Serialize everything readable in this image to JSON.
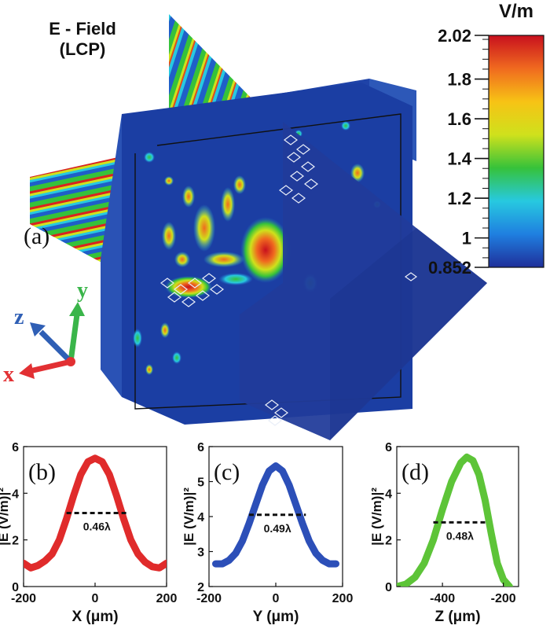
{
  "panel_a": {
    "title_line1": "E - Field",
    "title_line2": "(LCP)",
    "label": "(a)",
    "colorbar": {
      "unit": "V/m",
      "min": 0.852,
      "max": 2.02,
      "ticks": [
        "2.02",
        "1.8",
        "1.6",
        "1.4",
        "1.2",
        "1",
        "0.852"
      ],
      "tick_values": [
        2.02,
        1.8,
        1.6,
        1.4,
        1.2,
        1.0,
        0.852
      ],
      "colormap": [
        "#1f2f9a",
        "#1f7fe0",
        "#27c9e0",
        "#36c23a",
        "#cfe11c",
        "#f7c315",
        "#f06a1f",
        "#c8101e"
      ]
    },
    "axes": {
      "x": {
        "label": "x",
        "color": "#e23033"
      },
      "y": {
        "label": "y",
        "color": "#3ab54a"
      },
      "z": {
        "label": "z",
        "color": "#2f5fb5"
      }
    }
  },
  "chart_data": [
    {
      "type": "line",
      "panel": "(b)",
      "xlabel": "X (μm)",
      "ylabel": "|E (V/m)|²",
      "xlim": [
        -200,
        200
      ],
      "ylim": [
        0,
        6
      ],
      "xticks": [
        "-200",
        "0",
        "200"
      ],
      "yticks": [
        "0",
        "2",
        "4",
        "6"
      ],
      "color": "#e02b2b",
      "fwhm_label": "0.46λ",
      "fwhm_level": 3.15,
      "fwhm_x": [
        -80,
        90
      ],
      "x": [
        -200,
        -180,
        -160,
        -140,
        -120,
        -100,
        -80,
        -60,
        -40,
        -20,
        0,
        20,
        40,
        60,
        80,
        100,
        120,
        140,
        160,
        180,
        200
      ],
      "y": [
        1.0,
        0.8,
        0.9,
        1.1,
        1.4,
        2.0,
        2.9,
        3.9,
        4.8,
        5.35,
        5.5,
        5.35,
        4.8,
        3.9,
        2.9,
        2.0,
        1.4,
        1.05,
        0.85,
        0.8,
        1.0
      ]
    },
    {
      "type": "line",
      "panel": "(c)",
      "xlabel": "Y (μm)",
      "ylabel": "|E (V/m)|²",
      "xlim": [
        -200,
        200
      ],
      "ylim": [
        2,
        6
      ],
      "xticks": [
        "-200",
        "0",
        "200"
      ],
      "yticks": [
        "2",
        "3",
        "4",
        "5",
        "6"
      ],
      "color": "#2c4fb8",
      "fwhm_label": "0.49λ",
      "fwhm_level": 4.05,
      "fwhm_x": [
        -80,
        90
      ],
      "x": [
        -180,
        -160,
        -140,
        -120,
        -100,
        -80,
        -60,
        -40,
        -20,
        0,
        20,
        40,
        60,
        80,
        100,
        120,
        140,
        160,
        180
      ],
      "y": [
        2.65,
        2.65,
        2.75,
        2.95,
        3.3,
        3.8,
        4.35,
        4.9,
        5.3,
        5.45,
        5.3,
        4.9,
        4.35,
        3.8,
        3.3,
        2.95,
        2.75,
        2.65,
        2.65
      ]
    },
    {
      "type": "line",
      "panel": "(d)",
      "xlabel": "Z (μm)",
      "ylabel": "|E (V/m)|²",
      "xlim": [
        -550,
        -150
      ],
      "ylim": [
        0,
        6
      ],
      "xticks": [
        "-400",
        "-200"
      ],
      "yticks": [
        "0",
        "2",
        "4",
        "6"
      ],
      "color": "#5dc438",
      "fwhm_label": "0.48λ",
      "fwhm_level": 2.75,
      "fwhm_x": [
        -430,
        -255
      ],
      "x": [
        -550,
        -520,
        -490,
        -460,
        -430,
        -400,
        -370,
        -340,
        -320,
        -300,
        -280,
        -260,
        -240,
        -220,
        -200,
        -180
      ],
      "y": [
        0.0,
        0.1,
        0.4,
        1.0,
        2.0,
        3.3,
        4.5,
        5.3,
        5.55,
        5.4,
        4.8,
        3.7,
        2.3,
        1.0,
        0.3,
        0.0
      ]
    }
  ]
}
